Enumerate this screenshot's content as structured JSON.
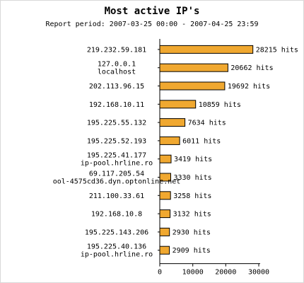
{
  "colors": {
    "bar": "#f0a830",
    "bar_stroke": "#000000",
    "axis": "#000000"
  },
  "chart_data": {
    "type": "bar",
    "orientation": "horizontal",
    "title": "Most active IP's",
    "subtitle": "Report period: 2007-03-25 00:00 - 2007-04-25 23:59",
    "xlabel": "",
    "ylabel": "",
    "xlim": [
      0,
      30000
    ],
    "x_ticks": [
      0,
      10000,
      20000,
      30000
    ],
    "grid": false,
    "legend": "none",
    "categories": [
      [
        "219.232.59.181"
      ],
      [
        "127.0.0.1",
        "localhost"
      ],
      [
        "202.113.96.15"
      ],
      [
        "192.168.10.11"
      ],
      [
        "195.225.55.132"
      ],
      [
        "195.225.52.193"
      ],
      [
        "195.225.41.177",
        "ip-pool.hrline.ro"
      ],
      [
        "69.117.205.54",
        "ool-4575cd36.dyn.optonline.net"
      ],
      [
        "211.100.33.61"
      ],
      [
        "192.168.10.8"
      ],
      [
        "195.225.143.206"
      ],
      [
        "195.225.40.136",
        "ip-pool.hrline.ro"
      ]
    ],
    "values": [
      28215,
      20662,
      19692,
      10859,
      7634,
      6011,
      3419,
      3330,
      3258,
      3132,
      2930,
      2909
    ],
    "value_labels": [
      "28215 hits",
      "20662 hits",
      "19692 hits",
      "10859 hits",
      "7634 hits",
      "6011 hits",
      "3419 hits",
      "3330 hits",
      "3258 hits",
      "3132 hits",
      "2930 hits",
      "2909 hits"
    ]
  }
}
